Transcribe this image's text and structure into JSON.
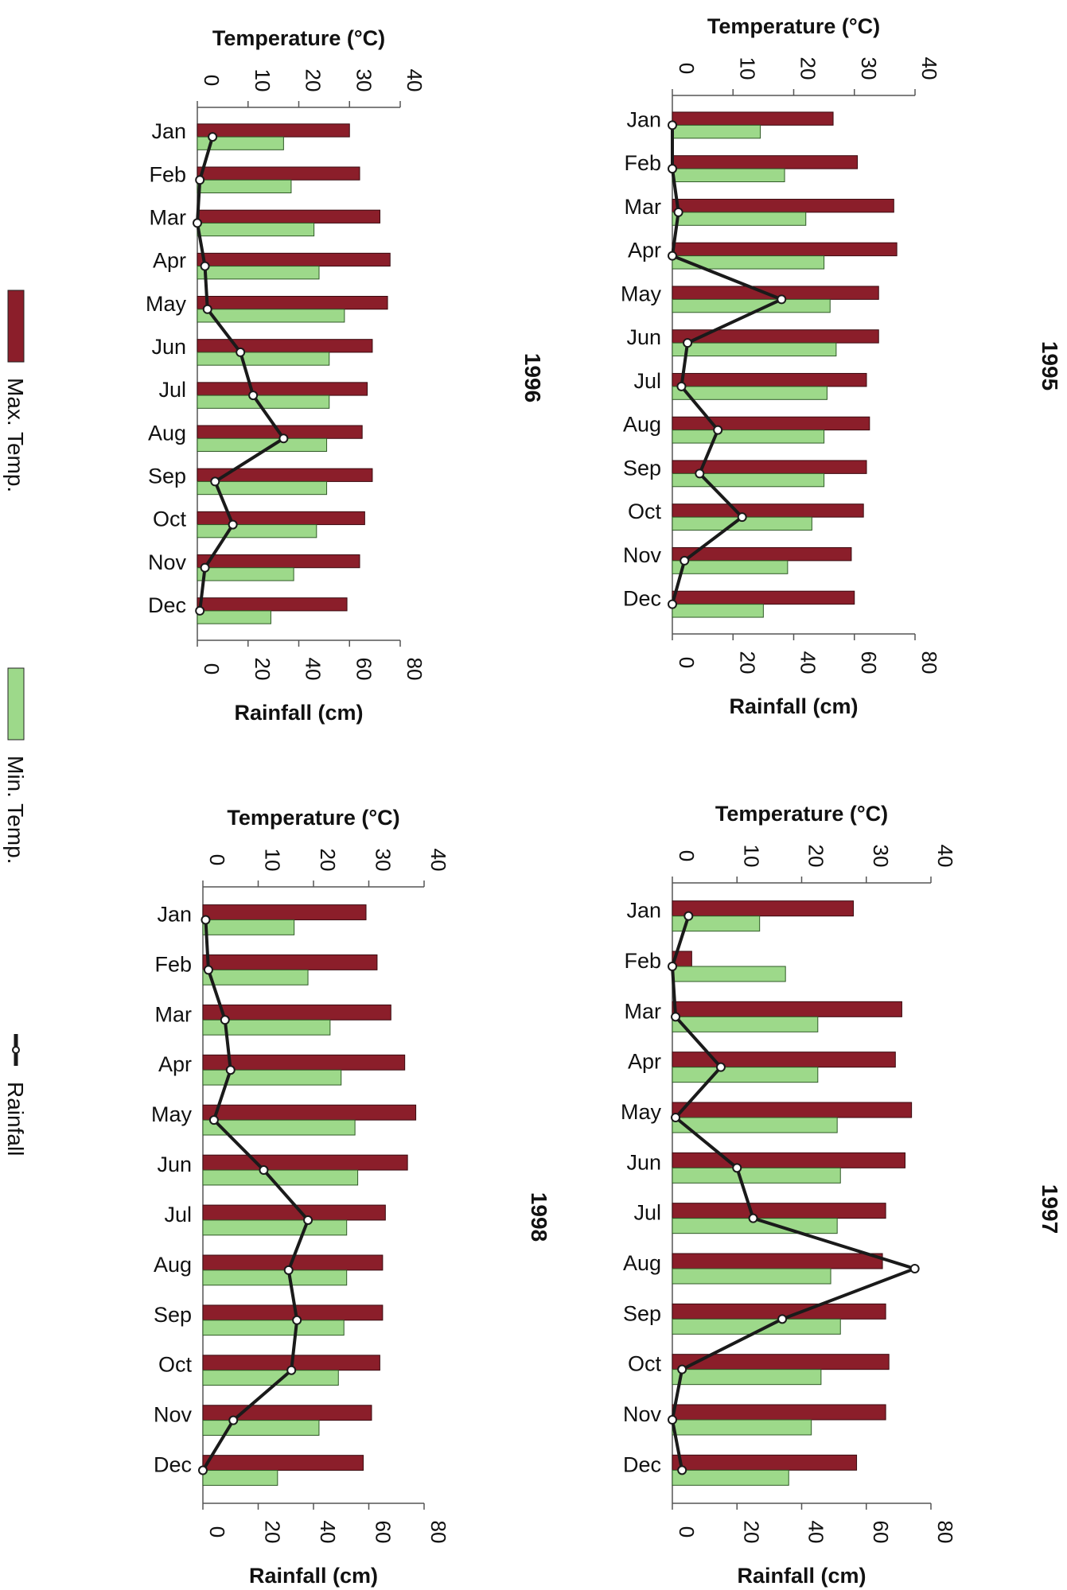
{
  "legend": {
    "items": [
      {
        "label": "Max. Temp.",
        "color": "#8b1e2a"
      },
      {
        "label": "Min. Temp.",
        "color": "#9dd98a"
      },
      {
        "label": "Rainfall",
        "color": "#1a1a1a",
        "marker": "circle-line"
      }
    ]
  },
  "chart_data": [
    {
      "type": "bar",
      "title": "1995",
      "categories": [
        "Jan",
        "Feb",
        "Mar",
        "Apr",
        "May",
        "Jun",
        "Jul",
        "Aug",
        "Sep",
        "Oct",
        "Nov",
        "Dec"
      ],
      "temp_label": "Temperature (°C)",
      "temp_ticks": [
        "0",
        "10",
        "20",
        "30",
        "40"
      ],
      "temp_range": [
        0,
        40
      ],
      "rain_label": "Rainfall (cm)",
      "rain_ticks": [
        "0",
        "20",
        "40",
        "60",
        "80"
      ],
      "rain_range": [
        0,
        80
      ],
      "series": [
        {
          "name": "Max. Temp.",
          "axis": "temperature",
          "values": [
            26.5,
            30.5,
            36.5,
            37,
            34,
            34,
            32,
            32.5,
            32,
            31.5,
            29.5,
            30
          ]
        },
        {
          "name": "Min. Temp.",
          "axis": "temperature",
          "values": [
            14.5,
            18.5,
            22,
            25,
            26,
            27,
            25.5,
            25,
            25,
            23,
            19,
            15
          ]
        },
        {
          "name": "Rainfall",
          "axis": "rainfall",
          "type": "line",
          "values": [
            0,
            0,
            2,
            0,
            36,
            5,
            3,
            15,
            9,
            23,
            4,
            0
          ]
        }
      ]
    },
    {
      "type": "bar",
      "title": "1996",
      "categories": [
        "Jan",
        "Feb",
        "Mar",
        "Apr",
        "May",
        "Jun",
        "Jul",
        "Aug",
        "Sep",
        "Oct",
        "Nov",
        "Dec"
      ],
      "temp_label": "Temperature (°C)",
      "temp_ticks": [
        "0",
        "10",
        "20",
        "30",
        "40"
      ],
      "temp_range": [
        0,
        40
      ],
      "rain_label": "Rainfall (cm)",
      "rain_ticks": [
        "0",
        "20",
        "40",
        "60",
        "80"
      ],
      "rain_range": [
        0,
        80
      ],
      "series": [
        {
          "name": "Max. Temp.",
          "axis": "temperature",
          "values": [
            30,
            32,
            36,
            38,
            37.5,
            34.5,
            33.5,
            32.5,
            34.5,
            33,
            32,
            29.5
          ]
        },
        {
          "name": "Min. Temp.",
          "axis": "temperature",
          "values": [
            17,
            18.5,
            23,
            24,
            29,
            26,
            26,
            25.5,
            25.5,
            23.5,
            19,
            14.5
          ]
        },
        {
          "name": "Rainfall",
          "axis": "rainfall",
          "type": "line",
          "values": [
            6,
            1,
            0,
            3,
            4,
            17,
            22,
            34,
            7,
            14,
            3,
            1
          ]
        }
      ]
    },
    {
      "type": "bar",
      "title": "1997",
      "categories": [
        "Jan",
        "Feb",
        "Mar",
        "Apr",
        "May",
        "Jun",
        "Jul",
        "Aug",
        "Sep",
        "Oct",
        "Nov",
        "Dec"
      ],
      "temp_label": "Temperature (°C)",
      "temp_ticks": [
        "0",
        "10",
        "20",
        "30",
        "40"
      ],
      "temp_range": [
        0,
        40
      ],
      "rain_label": "Rainfall (cm)",
      "rain_ticks": [
        "0",
        "20",
        "40",
        "60",
        "80"
      ],
      "rain_range": [
        0,
        80
      ],
      "series": [
        {
          "name": "Max. Temp.",
          "axis": "temperature",
          "values": [
            28,
            3,
            35.5,
            34.5,
            37,
            36,
            33,
            32.5,
            33,
            33.5,
            33,
            28.5
          ]
        },
        {
          "name": "Min. Temp.",
          "axis": "temperature",
          "values": [
            13.5,
            17.5,
            22.5,
            22.5,
            25.5,
            26,
            25.5,
            24.5,
            26,
            23,
            21.5,
            18
          ]
        },
        {
          "name": "Rainfall",
          "axis": "rainfall",
          "type": "line",
          "values": [
            5,
            0,
            1,
            15,
            1,
            20,
            25,
            75,
            34,
            3,
            0,
            3
          ]
        }
      ]
    },
    {
      "type": "bar",
      "title": "1998",
      "categories": [
        "Jan",
        "Feb",
        "Mar",
        "Apr",
        "May",
        "Jun",
        "Jul",
        "Aug",
        "Sep",
        "Oct",
        "Nov",
        "Dec"
      ],
      "temp_label": "Temperature (°C)",
      "temp_ticks": [
        "0",
        "10",
        "20",
        "30",
        "40"
      ],
      "temp_range": [
        0,
        40
      ],
      "rain_label": "Rainfall (cm)",
      "rain_ticks": [
        "0",
        "20",
        "40",
        "60",
        "80"
      ],
      "rain_range": [
        0,
        80
      ],
      "series": [
        {
          "name": "Max. Temp.",
          "axis": "temperature",
          "values": [
            29.5,
            31.5,
            34,
            36.5,
            38.5,
            37,
            33,
            32.5,
            32.5,
            32,
            30.5,
            29
          ]
        },
        {
          "name": "Min. Temp.",
          "axis": "temperature",
          "values": [
            16.5,
            19,
            23,
            25,
            27.5,
            28,
            26,
            26,
            25.5,
            24.5,
            21,
            13.5
          ]
        },
        {
          "name": "Rainfall",
          "axis": "rainfall",
          "type": "line",
          "values": [
            1,
            2,
            8,
            10,
            4,
            22,
            38,
            31,
            34,
            32,
            11,
            0
          ]
        }
      ]
    }
  ]
}
